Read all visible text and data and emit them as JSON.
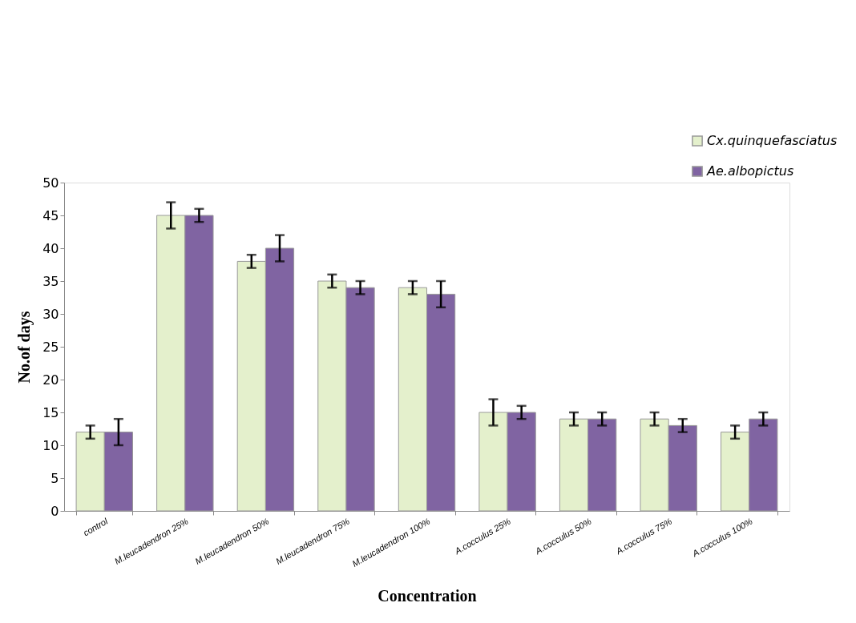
{
  "chart_data": {
    "type": "bar",
    "xlabel": "Concentration",
    "ylabel": "No.of days",
    "categories": [
      "control",
      "M.leucadendron 25%",
      "M.leucadendron 50%",
      "M.leucadendron 75%",
      "M.leucadendron 100%",
      "A.cocculus 25%",
      "A.cocculus 50%",
      "A.cocculus 75%",
      "A.cocculus 100%"
    ],
    "series": [
      {
        "name": "Cx.quinquefasciatus",
        "color": "#e4f0cc",
        "values": [
          12,
          45,
          38,
          35,
          34,
          15,
          14,
          14,
          12
        ],
        "errors": [
          1,
          2,
          1,
          1,
          1,
          2,
          1,
          1,
          1
        ]
      },
      {
        "name": "Ae.albopictus",
        "color": "#8064a2",
        "values": [
          12,
          45,
          40,
          34,
          33,
          15,
          14,
          13,
          14
        ],
        "errors": [
          2,
          1,
          2,
          1,
          2,
          1,
          1,
          1,
          1
        ]
      }
    ],
    "ylim": [
      0,
      50
    ],
    "yticks": [
      0,
      5,
      10,
      15,
      20,
      25,
      30,
      35,
      40,
      45,
      50
    ],
    "grid": false,
    "legend": "top right"
  }
}
